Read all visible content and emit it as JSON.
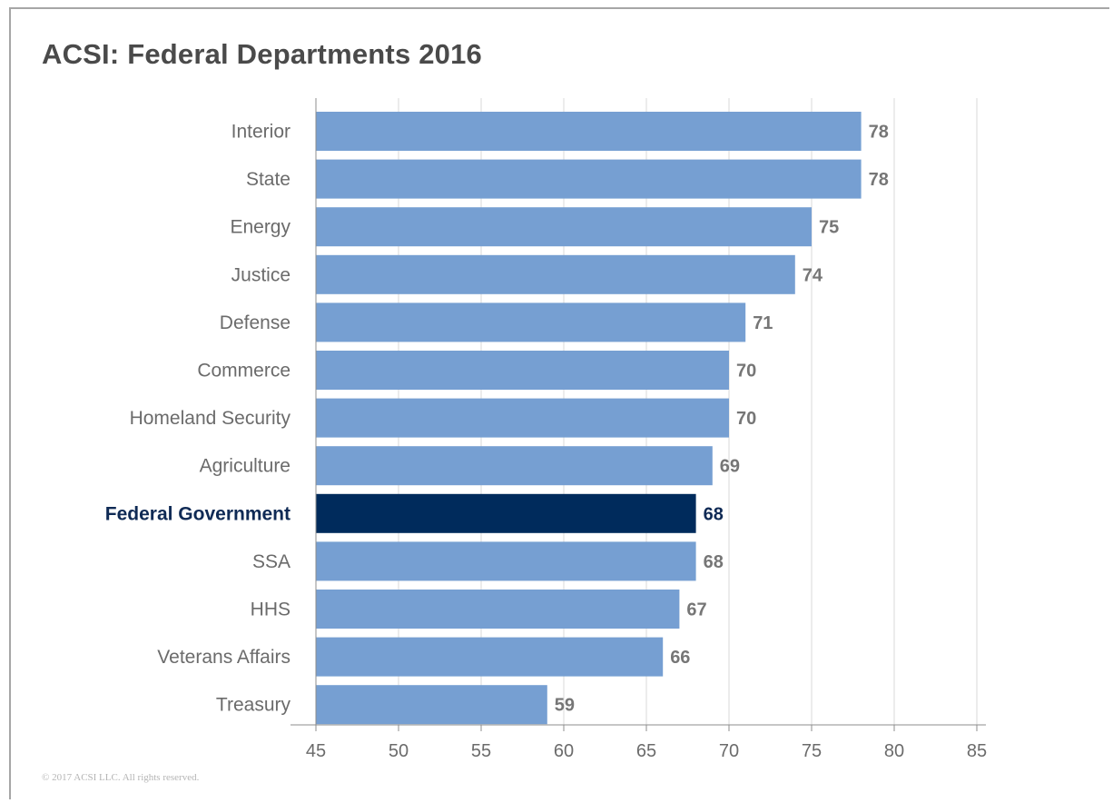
{
  "chart_data": {
    "type": "bar",
    "orientation": "horizontal",
    "title": "ACSI: Federal Departments 2016",
    "categories": [
      "Interior",
      "State",
      "Energy",
      "Justice",
      "Defense",
      "Commerce",
      "Homeland Security",
      "Agriculture",
      "Federal Government",
      "SSA",
      "HHS",
      "Veterans Affairs",
      "Treasury"
    ],
    "values": [
      78,
      78,
      75,
      74,
      71,
      70,
      70,
      69,
      68,
      68,
      67,
      66,
      59
    ],
    "highlight_category": "Federal Government",
    "xlim": [
      45,
      85
    ],
    "xticks": [
      45,
      50,
      55,
      60,
      65,
      70,
      75,
      80,
      85
    ],
    "grid": true,
    "legend": "none",
    "colors": {
      "bar": "#769fd2",
      "highlight_bar": "#002b5c",
      "gridline": "#d9d9d9",
      "axis": "#8c8c8c"
    }
  },
  "footer": {
    "copyright": "© 2017 ACSI LLC. All rights reserved."
  }
}
